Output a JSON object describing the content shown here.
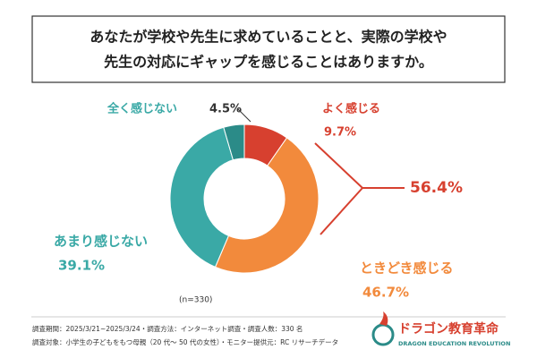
{
  "chart_data": {
    "type": "donut",
    "title": [
      "あなたが学校や先生に求めていることと、実際の学校や",
      "先生の対応にギャップを感じることはありますか。"
    ],
    "categories": [
      "よく感じる",
      "ときどき感じる",
      "あまり感じない",
      "全く感じない"
    ],
    "values": [
      9.7,
      46.7,
      39.1,
      4.5
    ],
    "value_labels": [
      "9.7%",
      "46.7%",
      "39.1%",
      "4.5%"
    ],
    "colors": [
      "#d7402f",
      "#f28a3c",
      "#3aa9a6",
      "#2b8b88"
    ],
    "annotation": "56.4%",
    "sample": "(n=330)",
    "notes": [
      "調査期間：2025/3/21~2025/3/24・調査方法：インターネット調査・調査人数：330 名",
      "調査対象：小学生の子どもをもつ母親（20 代〜 50 代の女性）・モニター提供元：RC リサーチデータ"
    ]
  },
  "logo": {
    "name": "ドラゴン教育革命",
    "subtitle": "DRAGON EDUCATION REVOLUTION"
  }
}
